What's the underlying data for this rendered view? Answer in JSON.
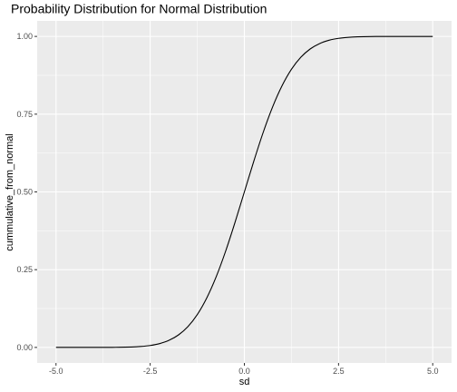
{
  "chart_data": {
    "type": "line",
    "title": "Probability Distribution for Normal Distribution",
    "xlabel": "sd",
    "ylabel": "cummulative_from_normal",
    "xlim": [
      -5,
      5
    ],
    "ylim": [
      0,
      1
    ],
    "x_ticks": [
      "-5.0",
      "-2.5",
      "0.0",
      "2.5",
      "5.0"
    ],
    "y_ticks": [
      "0.00",
      "0.25",
      "0.50",
      "0.75",
      "1.00"
    ],
    "grid": true,
    "series": [
      {
        "x": [
          -5.0,
          -4.5,
          -4.0,
          -3.5,
          -3.0,
          -2.75,
          -2.5,
          -2.25,
          -2.0,
          -1.75,
          -1.5,
          -1.25,
          -1.0,
          -0.75,
          -0.5,
          -0.25,
          0.0,
          0.25,
          0.5,
          0.75,
          1.0,
          1.25,
          1.5,
          1.75,
          2.0,
          2.25,
          2.5,
          2.75,
          3.0,
          3.5,
          4.0,
          4.5,
          5.0
        ],
        "values": [
          0.0,
          0.0,
          0.0,
          0.0002,
          0.0013,
          0.003,
          0.0062,
          0.0122,
          0.0228,
          0.0401,
          0.0668,
          0.1056,
          0.1587,
          0.2266,
          0.3085,
          0.4013,
          0.5,
          0.5987,
          0.6915,
          0.7734,
          0.8413,
          0.8944,
          0.9332,
          0.9599,
          0.9772,
          0.9878,
          0.9938,
          0.997,
          0.9987,
          0.9998,
          1.0,
          1.0,
          1.0
        ],
        "color": "#000000"
      }
    ]
  },
  "colors": {
    "panel_background": "#ebebeb",
    "grid_line": "#ffffff"
  }
}
